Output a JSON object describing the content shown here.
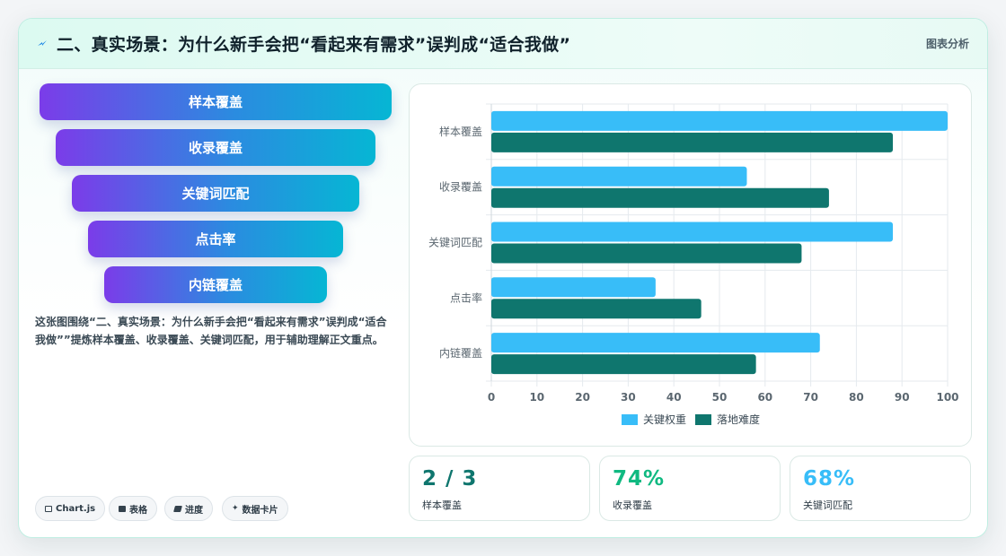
{
  "header": {
    "title": "二、真实场景：为什么新手会把“看起来有需求”误判成“适合我做”",
    "tag": "图表分析"
  },
  "funnel": [
    "样本覆盖",
    "收录覆盖",
    "关键词匹配",
    "点击率",
    "内链覆盖"
  ],
  "description": "这张图围绕“二、真实场景：为什么新手会把“看起来有需求”误判成“适合我做””提炼样本覆盖、收录覆盖、关键词匹配，用于辅助理解正文重点。",
  "chips": [
    {
      "icon": "chart-icon",
      "label": "Chart.js"
    },
    {
      "icon": "table-icon",
      "label": "表格"
    },
    {
      "icon": "progress-icon",
      "label": "进度"
    },
    {
      "icon": "sparkle-icon",
      "label": "数据卡片"
    }
  ],
  "kpis": [
    {
      "value": "2 / 3",
      "label": "样本覆盖",
      "color": "#0f766e"
    },
    {
      "value": "74%",
      "label": "收录覆盖",
      "color": "#10b981"
    },
    {
      "value": "68%",
      "label": "关键词匹配",
      "color": "#38bdf8"
    }
  ],
  "chart_data": {
    "type": "bar",
    "orientation": "horizontal",
    "categories": [
      "样本覆盖",
      "收录覆盖",
      "关键词匹配",
      "点击率",
      "内链覆盖"
    ],
    "series": [
      {
        "name": "关键权重",
        "values": [
          100,
          56,
          88,
          36,
          72
        ],
        "color": "#38bdf8"
      },
      {
        "name": "落地难度",
        "values": [
          88,
          74,
          68,
          46,
          58
        ],
        "color": "#0f766e"
      }
    ],
    "xlim": [
      0,
      100
    ],
    "xticks": [
      0,
      10,
      20,
      30,
      40,
      50,
      60,
      70,
      80,
      90,
      100
    ],
    "grid": true,
    "legend": "bottom"
  }
}
